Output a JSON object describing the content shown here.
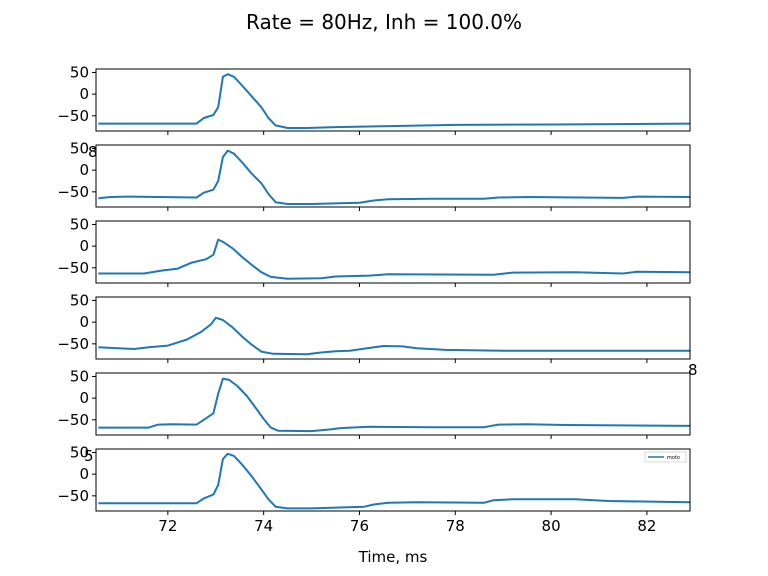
{
  "chart_data": {
    "type": "line",
    "title": "Rate = 80Hz, Inh = 100.0%",
    "xlabel": "Time, ms",
    "xlim": [
      70.5,
      82.9
    ],
    "ylim": [
      -85,
      58
    ],
    "yticks": [
      50,
      0,
      -50
    ],
    "xticks": [
      72,
      74,
      76,
      78,
      80,
      82
    ],
    "legend": {
      "label": "moto",
      "placement": "top-right",
      "panel": 5
    },
    "stray_labels": [
      {
        "text": "8",
        "panel": 1,
        "position": "top-left"
      },
      {
        "text": "8",
        "panel": 3,
        "position": "bottom-right"
      },
      {
        "text": "5",
        "panel": 4,
        "position": "bottom-left"
      }
    ],
    "panels": [
      {
        "series": [
          {
            "name": "moto",
            "points": [
              [
                70.55,
                -68
              ],
              [
                72.6,
                -68
              ],
              [
                72.75,
                -55
              ],
              [
                72.95,
                -48
              ],
              [
                73.05,
                -30
              ],
              [
                73.15,
                40
              ],
              [
                73.25,
                46
              ],
              [
                73.38,
                40
              ],
              [
                73.55,
                20
              ],
              [
                73.75,
                -5
              ],
              [
                73.95,
                -30
              ],
              [
                74.1,
                -55
              ],
              [
                74.25,
                -72
              ],
              [
                74.5,
                -78
              ],
              [
                74.9,
                -78
              ],
              [
                75.5,
                -76
              ],
              [
                76.5,
                -74
              ],
              [
                78,
                -71
              ],
              [
                80,
                -70
              ],
              [
                82.9,
                -68
              ]
            ]
          }
        ]
      },
      {
        "series": [
          {
            "name": "moto",
            "points": [
              [
                70.55,
                -65
              ],
              [
                70.8,
                -62
              ],
              [
                71.2,
                -61
              ],
              [
                72.6,
                -63
              ],
              [
                72.75,
                -52
              ],
              [
                72.95,
                -45
              ],
              [
                73.05,
                -25
              ],
              [
                73.15,
                30
              ],
              [
                73.25,
                45
              ],
              [
                73.38,
                38
              ],
              [
                73.55,
                18
              ],
              [
                73.75,
                -8
              ],
              [
                73.95,
                -30
              ],
              [
                74.1,
                -55
              ],
              [
                74.25,
                -74
              ],
              [
                74.5,
                -78
              ],
              [
                75,
                -78
              ],
              [
                76,
                -75
              ],
              [
                76.3,
                -70
              ],
              [
                76.6,
                -67
              ],
              [
                77.5,
                -66
              ],
              [
                78.6,
                -66
              ],
              [
                78.9,
                -63
              ],
              [
                79.5,
                -62
              ],
              [
                81.5,
                -64
              ],
              [
                81.8,
                -61
              ],
              [
                82.9,
                -62
              ]
            ]
          }
        ]
      },
      {
        "series": [
          {
            "name": "moto",
            "points": [
              [
                70.55,
                -63
              ],
              [
                71.5,
                -63
              ],
              [
                71.9,
                -56
              ],
              [
                72.2,
                -52
              ],
              [
                72.5,
                -38
              ],
              [
                72.8,
                -30
              ],
              [
                72.95,
                -20
              ],
              [
                73.05,
                15
              ],
              [
                73.15,
                10
              ],
              [
                73.35,
                -5
              ],
              [
                73.55,
                -25
              ],
              [
                73.75,
                -43
              ],
              [
                73.95,
                -60
              ],
              [
                74.15,
                -71
              ],
              [
                74.5,
                -75
              ],
              [
                75.2,
                -74
              ],
              [
                75.5,
                -70
              ],
              [
                76.2,
                -68
              ],
              [
                76.6,
                -65
              ],
              [
                78.8,
                -66
              ],
              [
                79.2,
                -61
              ],
              [
                80.5,
                -60
              ],
              [
                81.5,
                -63
              ],
              [
                81.8,
                -59
              ],
              [
                82.9,
                -60
              ]
            ]
          }
        ]
      },
      {
        "series": [
          {
            "name": "moto",
            "points": [
              [
                70.55,
                -58
              ],
              [
                71.3,
                -62
              ],
              [
                71.6,
                -58
              ],
              [
                72,
                -54
              ],
              [
                72.4,
                -40
              ],
              [
                72.7,
                -22
              ],
              [
                72.9,
                -5
              ],
              [
                73,
                10
              ],
              [
                73.15,
                5
              ],
              [
                73.35,
                -12
              ],
              [
                73.55,
                -33
              ],
              [
                73.75,
                -52
              ],
              [
                73.95,
                -68
              ],
              [
                74.2,
                -73
              ],
              [
                74.9,
                -74
              ],
              [
                75.2,
                -70
              ],
              [
                75.5,
                -67
              ],
              [
                75.8,
                -66
              ],
              [
                76.1,
                -61
              ],
              [
                76.5,
                -55
              ],
              [
                76.9,
                -56
              ],
              [
                77.2,
                -60
              ],
              [
                77.8,
                -64
              ],
              [
                79,
                -66
              ],
              [
                82.9,
                -66
              ]
            ]
          }
        ]
      },
      {
        "series": [
          {
            "name": "moto",
            "points": [
              [
                70.55,
                -68
              ],
              [
                71.6,
                -68
              ],
              [
                71.8,
                -61
              ],
              [
                72.1,
                -60
              ],
              [
                72.6,
                -61
              ],
              [
                72.75,
                -50
              ],
              [
                72.95,
                -35
              ],
              [
                73.05,
                10
              ],
              [
                73.15,
                45
              ],
              [
                73.28,
                42
              ],
              [
                73.45,
                28
              ],
              [
                73.65,
                5
              ],
              [
                73.85,
                -25
              ],
              [
                74,
                -48
              ],
              [
                74.15,
                -68
              ],
              [
                74.3,
                -75
              ],
              [
                75,
                -76
              ],
              [
                75.4,
                -72
              ],
              [
                75.6,
                -69
              ],
              [
                76.2,
                -66
              ],
              [
                77.5,
                -67
              ],
              [
                78.6,
                -67
              ],
              [
                78.9,
                -61
              ],
              [
                79.5,
                -60
              ],
              [
                80.3,
                -62
              ],
              [
                82.9,
                -64
              ]
            ]
          }
        ]
      },
      {
        "series": [
          {
            "name": "moto",
            "points": [
              [
                70.55,
                -67
              ],
              [
                72.6,
                -67
              ],
              [
                72.75,
                -56
              ],
              [
                72.95,
                -47
              ],
              [
                73.05,
                -25
              ],
              [
                73.15,
                35
              ],
              [
                73.25,
                47
              ],
              [
                73.38,
                42
              ],
              [
                73.55,
                22
              ],
              [
                73.75,
                -5
              ],
              [
                73.95,
                -35
              ],
              [
                74.1,
                -58
              ],
              [
                74.25,
                -75
              ],
              [
                74.5,
                -79
              ],
              [
                75,
                -79
              ],
              [
                76.1,
                -75
              ],
              [
                76.3,
                -70
              ],
              [
                76.6,
                -66
              ],
              [
                77.2,
                -65
              ],
              [
                78.6,
                -66
              ],
              [
                78.8,
                -60
              ],
              [
                79.2,
                -58
              ],
              [
                80.5,
                -58
              ],
              [
                81.2,
                -62
              ],
              [
                82.9,
                -65
              ]
            ]
          }
        ]
      }
    ]
  }
}
